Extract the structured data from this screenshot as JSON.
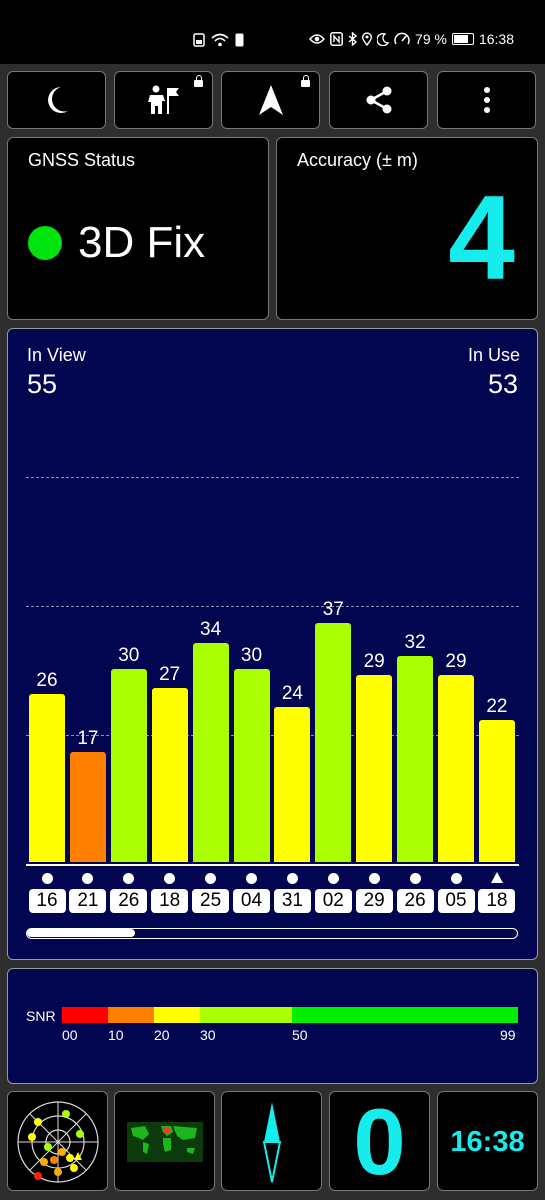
{
  "status_bar": {
    "icons_left": [
      "image-icon",
      "wifi-icon",
      "sim-icon"
    ],
    "icons_right": [
      "eye-icon",
      "nfc-icon",
      "bluetooth-icon",
      "location-icon",
      "moon-icon",
      "speed-icon"
    ],
    "battery_text": "79 %",
    "time": "16:38"
  },
  "toolbar": {
    "buttons": [
      {
        "icon": "moon-icon"
      },
      {
        "icon": "person-flag-icon",
        "locked": true
      },
      {
        "icon": "navigation-arrow-icon",
        "locked": true
      },
      {
        "icon": "share-icon"
      },
      {
        "icon": "more-vertical-icon"
      }
    ]
  },
  "gnss_status": {
    "title": "GNSS Status",
    "value": "3D Fix",
    "indicator_color": "#00e30c"
  },
  "accuracy": {
    "title": "Accuracy (± m)",
    "value": "4"
  },
  "satellites": {
    "in_view_label": "In View",
    "in_view_value": "55",
    "in_use_label": "In Use",
    "in_use_value": "53",
    "scroll_position": 0.22,
    "items": [
      {
        "prn": "16",
        "snr": "26",
        "color": "#ffff00",
        "marker": "dot"
      },
      {
        "prn": "21",
        "snr": "17",
        "color": "#ff8000",
        "marker": "dot"
      },
      {
        "prn": "26",
        "snr": "30",
        "color": "#aaff00",
        "marker": "dot"
      },
      {
        "prn": "18",
        "snr": "27",
        "color": "#ffff00",
        "marker": "dot"
      },
      {
        "prn": "25",
        "snr": "34",
        "color": "#aaff00",
        "marker": "dot"
      },
      {
        "prn": "04",
        "snr": "30",
        "color": "#aaff00",
        "marker": "dot"
      },
      {
        "prn": "31",
        "snr": "24",
        "color": "#ffff00",
        "marker": "dot"
      },
      {
        "prn": "02",
        "snr": "37",
        "color": "#aaff00",
        "marker": "dot"
      },
      {
        "prn": "29",
        "snr": "29",
        "color": "#ffff00",
        "marker": "dot"
      },
      {
        "prn": "26",
        "snr": "32",
        "color": "#aaff00",
        "marker": "dot"
      },
      {
        "prn": "05",
        "snr": "29",
        "color": "#ffff00",
        "marker": "dot"
      },
      {
        "prn": "18",
        "snr": "22",
        "color": "#ffff00",
        "marker": "triangle"
      }
    ]
  },
  "snr_legend": {
    "label": "SNR",
    "ticks": [
      "00",
      "10",
      "20",
      "30",
      "50",
      "99"
    ],
    "segments": [
      {
        "from": 0,
        "to": 10,
        "color": "#ff0000"
      },
      {
        "from": 10,
        "to": 20,
        "color": "#ff8000"
      },
      {
        "from": 20,
        "to": 30,
        "color": "#ffff00"
      },
      {
        "from": 30,
        "to": 50,
        "color": "#aaff00"
      },
      {
        "from": 50,
        "to": 99,
        "color": "#00ee00"
      }
    ]
  },
  "bottom_bar": {
    "sky_view_icon": "sky-plot-icon",
    "map_icon": "world-map-icon",
    "compass_icon": "compass-icon",
    "speed_value": "0",
    "clock_value": "16:38"
  }
}
